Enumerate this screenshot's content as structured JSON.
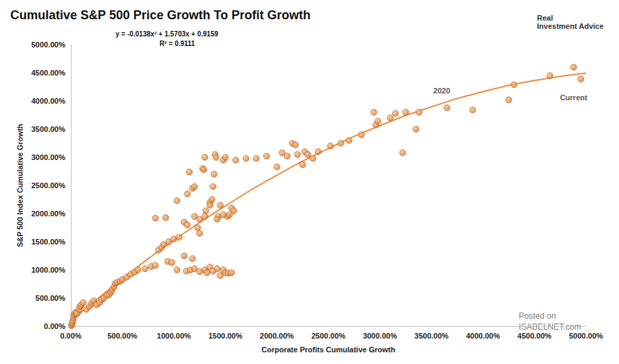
{
  "chart_data": {
    "type": "scatter",
    "title": "Cumulative S&P 500 Price Growth To Profit Growth",
    "x_label": "Corporate Profits Cumulative Growth",
    "y_label": "S&P 500 Index Cumulative Growth",
    "equation": "y = -0.0138x² + 1.5703x + 0.9159",
    "r_squared": "R² = 0.9111",
    "logo_text": "Real Investment Advice",
    "source": "Posted on ISABELNET.com",
    "annotations": [
      {
        "text": "2020",
        "x": 3600,
        "y": 4180
      },
      {
        "text": "Current",
        "x": 4880,
        "y": 4060
      }
    ],
    "grid": false,
    "xlim": [
      0,
      5000
    ],
    "ylim": [
      0,
      5000
    ],
    "xticks": [
      {
        "value": 0,
        "label": "0.00%"
      },
      {
        "value": 500,
        "label": "500.00%"
      },
      {
        "value": 1000,
        "label": "1000.00%"
      },
      {
        "value": 1500,
        "label": "1500.00%"
      },
      {
        "value": 2000,
        "label": "2000.00%"
      },
      {
        "value": 2500,
        "label": "2500.00%"
      },
      {
        "value": 3000,
        "label": "3000.00%"
      },
      {
        "value": 3500,
        "label": "3500.00%"
      },
      {
        "value": 4000,
        "label": "4000.00%"
      },
      {
        "value": 4500,
        "label": "4500.00%"
      },
      {
        "value": 5000,
        "label": "5000.00%"
      }
    ],
    "yticks": [
      {
        "value": 0,
        "label": "0.00%"
      },
      {
        "value": 500,
        "label": "500.00%"
      },
      {
        "value": 1000,
        "label": "1000.00%"
      },
      {
        "value": 1500,
        "label": "1500.00%"
      },
      {
        "value": 2000,
        "label": "2000.00%"
      },
      {
        "value": 2500,
        "label": "2500.00%"
      },
      {
        "value": 3000,
        "label": "3000.00%"
      },
      {
        "value": 3500,
        "label": "3500.00%"
      },
      {
        "value": 4000,
        "label": "4000.00%"
      },
      {
        "value": 4500,
        "label": "4500.00%"
      },
      {
        "value": 5000,
        "label": "5000.00%"
      }
    ],
    "series": [
      {
        "type": "scatter",
        "color": "#d9782f",
        "marker": "circle",
        "points": [
          [
            5,
            10
          ],
          [
            10,
            30
          ],
          [
            15,
            60
          ],
          [
            20,
            100
          ],
          [
            25,
            150
          ],
          [
            30,
            200
          ],
          [
            40,
            230
          ],
          [
            50,
            250
          ],
          [
            60,
            220
          ],
          [
            80,
            300
          ],
          [
            90,
            350
          ],
          [
            100,
            380
          ],
          [
            120,
            420
          ],
          [
            150,
            300
          ],
          [
            180,
            350
          ],
          [
            200,
            400
          ],
          [
            220,
            450
          ],
          [
            250,
            380
          ],
          [
            280,
            420
          ],
          [
            300,
            470
          ],
          [
            320,
            500
          ],
          [
            350,
            550
          ],
          [
            370,
            560
          ],
          [
            390,
            600
          ],
          [
            400,
            650
          ],
          [
            420,
            700
          ],
          [
            430,
            760
          ],
          [
            450,
            780
          ],
          [
            480,
            800
          ],
          [
            500,
            830
          ],
          [
            540,
            870
          ],
          [
            580,
            920
          ],
          [
            620,
            960
          ],
          [
            650,
            1000
          ],
          [
            720,
            1020
          ],
          [
            780,
            1060
          ],
          [
            820,
            1080
          ],
          [
            850,
            1350
          ],
          [
            880,
            1400
          ],
          [
            900,
            1450
          ],
          [
            950,
            1500
          ],
          [
            1000,
            1550
          ],
          [
            1050,
            1580
          ],
          [
            820,
            1920
          ],
          [
            920,
            1930
          ],
          [
            1030,
            2230
          ],
          [
            1130,
            2350
          ],
          [
            1150,
            2740
          ],
          [
            1180,
            2450
          ],
          [
            1200,
            2480
          ],
          [
            1230,
            1750
          ],
          [
            1250,
            1900
          ],
          [
            1280,
            2800
          ],
          [
            1290,
            2780
          ],
          [
            1300,
            3000
          ],
          [
            1310,
            2050
          ],
          [
            1350,
            2200
          ],
          [
            1370,
            2250
          ],
          [
            1380,
            2480
          ],
          [
            1390,
            2700
          ],
          [
            1400,
            3050
          ],
          [
            1410,
            3000
          ],
          [
            1430,
            1950
          ],
          [
            1450,
            2150
          ],
          [
            1480,
            2950
          ],
          [
            1500,
            3000
          ],
          [
            1520,
            1950
          ],
          [
            1560,
            2100
          ],
          [
            1580,
            2050
          ],
          [
            1600,
            2950
          ],
          [
            1700,
            2980
          ],
          [
            1800,
            2980
          ],
          [
            1900,
            3020
          ],
          [
            2000,
            2830
          ],
          [
            2050,
            3080
          ],
          [
            2100,
            3020
          ],
          [
            2150,
            3250
          ],
          [
            2180,
            3220
          ],
          [
            2200,
            3050
          ],
          [
            2250,
            2870
          ],
          [
            2270,
            3100
          ],
          [
            2300,
            3050
          ],
          [
            2350,
            2980
          ],
          [
            2400,
            3100
          ],
          [
            2520,
            3200
          ],
          [
            2620,
            3250
          ],
          [
            2700,
            3300
          ],
          [
            2820,
            3400
          ],
          [
            2940,
            3800
          ],
          [
            2960,
            3580
          ],
          [
            2980,
            3640
          ],
          [
            3100,
            3700
          ],
          [
            3150,
            3780
          ],
          [
            3220,
            3080
          ],
          [
            3250,
            3800
          ],
          [
            3350,
            3500
          ],
          [
            3380,
            3800
          ],
          [
            3650,
            3880
          ],
          [
            3900,
            3840
          ],
          [
            4250,
            4020
          ],
          [
            4300,
            4290
          ],
          [
            4650,
            4450
          ],
          [
            4880,
            4600
          ],
          [
            4950,
            4390
          ],
          [
            1100,
            1850
          ],
          [
            1130,
            1800
          ],
          [
            1200,
            1950
          ],
          [
            1250,
            1650
          ],
          [
            1300,
            1950
          ],
          [
            1350,
            2150
          ],
          [
            1420,
            1900
          ],
          [
            1480,
            1980
          ],
          [
            1540,
            1980
          ],
          [
            940,
            1150
          ],
          [
            980,
            1130
          ],
          [
            1030,
            1000
          ],
          [
            1100,
            1250
          ],
          [
            1120,
            980
          ],
          [
            1160,
            1000
          ],
          [
            1180,
            1200
          ],
          [
            1200,
            1020
          ],
          [
            1250,
            970
          ],
          [
            1300,
            1000
          ],
          [
            1320,
            950
          ],
          [
            1350,
            1050
          ],
          [
            1380,
            980
          ],
          [
            1420,
            1020
          ],
          [
            1450,
            900
          ],
          [
            1480,
            1000
          ],
          [
            1500,
            950
          ],
          [
            1530,
            940
          ],
          [
            1560,
            950
          ]
        ]
      },
      {
        "type": "line",
        "color": "#f08a3c",
        "line_style": "solid",
        "points": [
          [
            0,
            92
          ],
          [
            500,
            842
          ],
          [
            1000,
            1524
          ],
          [
            1500,
            2136
          ],
          [
            2000,
            2681
          ],
          [
            2500,
            3155
          ],
          [
            3000,
            3561
          ],
          [
            3500,
            3897
          ],
          [
            4000,
            4165
          ],
          [
            4500,
            4364
          ],
          [
            5000,
            4493
          ]
        ]
      }
    ]
  }
}
